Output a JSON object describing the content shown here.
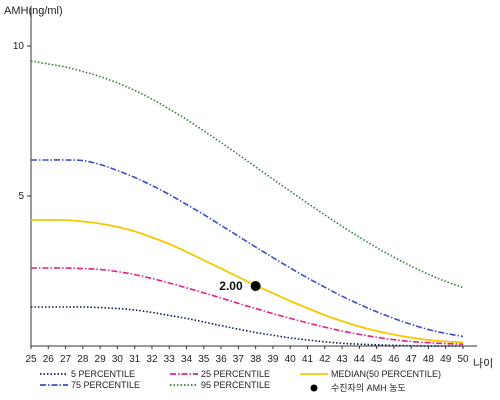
{
  "chart_data": {
    "type": "line",
    "ylabel": "AMH(ng/ml)",
    "xlabel": "나이",
    "x": [
      25,
      26,
      27,
      28,
      29,
      30,
      31,
      32,
      33,
      34,
      35,
      36,
      37,
      38,
      39,
      40,
      41,
      42,
      43,
      44,
      45,
      46,
      47,
      48,
      49,
      50
    ],
    "xlim": [
      25,
      50
    ],
    "ylim": [
      0,
      11
    ],
    "yticks": [
      5,
      10
    ],
    "grid": false,
    "legend_position": "bottom",
    "series": [
      {
        "name": "5 PERCENTILE",
        "color": "#0a1a5c",
        "style": "dotted",
        "values": [
          1.3,
          1.3,
          1.3,
          1.3,
          1.28,
          1.25,
          1.2,
          1.12,
          1.02,
          0.92,
          0.8,
          0.68,
          0.56,
          0.45,
          0.36,
          0.27,
          0.2,
          0.14,
          0.09,
          0.06,
          0.04,
          0.02,
          0.01,
          0.0,
          0.0,
          0.0
        ]
      },
      {
        "name": "25 PERCENTILE",
        "color": "#e0208a",
        "style": "dashdot",
        "values": [
          2.6,
          2.6,
          2.6,
          2.58,
          2.55,
          2.48,
          2.38,
          2.25,
          2.1,
          1.94,
          1.77,
          1.6,
          1.42,
          1.25,
          1.08,
          0.92,
          0.77,
          0.63,
          0.5,
          0.39,
          0.29,
          0.21,
          0.15,
          0.11,
          0.08,
          0.06
        ]
      },
      {
        "name": "MEDIAN(50 PERCENTILE)",
        "color": "#f5c800",
        "style": "solid",
        "values": [
          4.2,
          4.2,
          4.2,
          4.15,
          4.08,
          3.97,
          3.82,
          3.62,
          3.4,
          3.14,
          2.86,
          2.58,
          2.3,
          2.02,
          1.76,
          1.5,
          1.26,
          1.03,
          0.83,
          0.65,
          0.5,
          0.38,
          0.28,
          0.2,
          0.15,
          0.12
        ]
      },
      {
        "name": "75 PERCENTILE",
        "color": "#3b4fc4",
        "style": "dashdot",
        "values": [
          6.2,
          6.2,
          6.2,
          6.18,
          6.05,
          5.85,
          5.62,
          5.35,
          5.05,
          4.72,
          4.38,
          4.02,
          3.66,
          3.3,
          2.95,
          2.6,
          2.27,
          1.96,
          1.66,
          1.39,
          1.14,
          0.92,
          0.72,
          0.55,
          0.42,
          0.32
        ]
      },
      {
        "name": "95 PERCENTILE",
        "color": "#2e7d3a",
        "style": "dotted",
        "values": [
          9.5,
          9.4,
          9.3,
          9.15,
          8.98,
          8.77,
          8.52,
          8.23,
          7.9,
          7.55,
          7.17,
          6.78,
          6.38,
          5.97,
          5.56,
          5.16,
          4.76,
          4.37,
          3.99,
          3.63,
          3.28,
          2.96,
          2.66,
          2.39,
          2.15,
          1.95
        ]
      }
    ],
    "marker": {
      "name": "수진자의 AMH 농도",
      "x": 38,
      "y": 2.0,
      "label": "2.00",
      "color": "#000000"
    }
  }
}
